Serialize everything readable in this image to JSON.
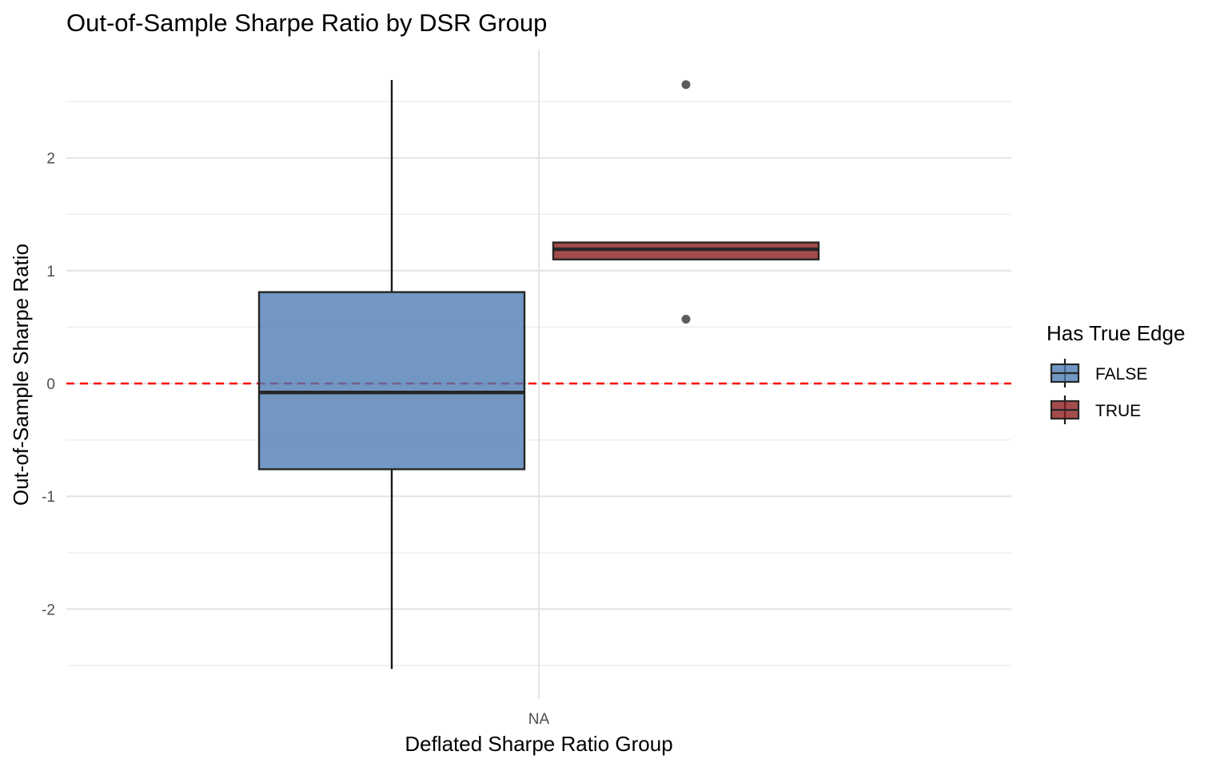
{
  "chart_data": {
    "type": "boxplot",
    "title": "Out-of-Sample Sharpe Ratio by DSR Group",
    "xlabel": "Deflated Sharpe Ratio Group",
    "ylabel": "Out-of-Sample Sharpe Ratio",
    "categories": [
      "NA"
    ],
    "ylim": [
      -2.6,
      2.95
    ],
    "y_ticks": [
      -2,
      -1,
      0,
      1,
      2
    ],
    "y_tick_labels": [
      "-2",
      "-1",
      "0",
      "1",
      "2"
    ],
    "reference_line": {
      "y": 0,
      "color": "#ff0000",
      "style": "dashed"
    },
    "legend": {
      "title": "Has True Edge",
      "position": "right",
      "entries": [
        "FALSE",
        "TRUE"
      ]
    },
    "series": [
      {
        "name": "FALSE",
        "color": "#4a7ab2",
        "min": -2.53,
        "q1": -0.76,
        "median": -0.08,
        "q3": 0.81,
        "max": 2.69,
        "outliers": []
      },
      {
        "name": "TRUE",
        "color": "#8b1a1a",
        "min": 1.1,
        "q1": 1.1,
        "median": 1.19,
        "q3": 1.25,
        "max": 1.25,
        "outliers": [
          2.65,
          0.57
        ]
      }
    ],
    "grid": true
  }
}
